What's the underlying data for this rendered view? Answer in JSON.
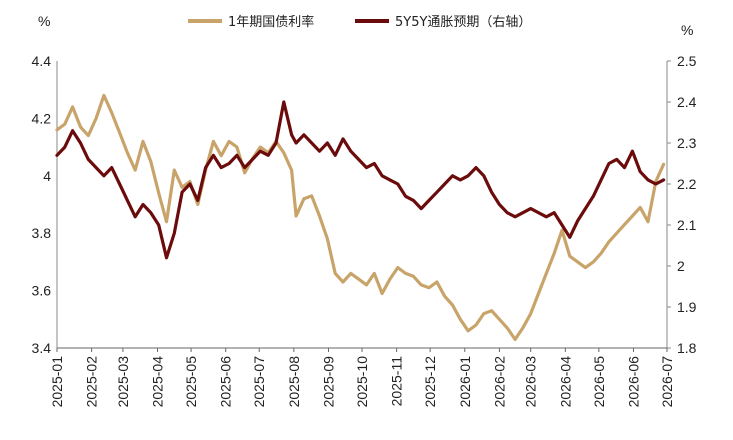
{
  "chart_data": {
    "type": "line",
    "title": "",
    "left_unit": "%",
    "right_unit": "%",
    "x_ticks": [
      "2025-01",
      "2025-02",
      "2025-03",
      "2025-04",
      "2025-05",
      "2025-06",
      "2025-07",
      "2025-08",
      "2025-09",
      "2025-10",
      "2025-11",
      "2025-12",
      "2026-01",
      "2026-02",
      "2026-03",
      "2026-04",
      "2026-05",
      "2026-06",
      "2026-07"
    ],
    "y_left": {
      "range": [
        3.4,
        4.4
      ],
      "ticks": [
        "3.4",
        "3.6",
        "3.8",
        "4",
        "4.2",
        "4.4"
      ]
    },
    "y_right": {
      "range": [
        1.8,
        2.5
      ],
      "ticks": [
        "1.8",
        "1.9",
        "2",
        "2.1",
        "2.2",
        "2.3",
        "2.4",
        "2.5"
      ]
    },
    "legend_position": "top-center",
    "grid": false,
    "series": [
      {
        "name": "1年期国债利率",
        "axis": "left",
        "color": "#c9a46a",
        "points": [
          [
            "2025-01-01",
            4.16
          ],
          [
            "2025-01-08",
            4.18
          ],
          [
            "2025-01-15",
            4.24
          ],
          [
            "2025-01-22",
            4.17
          ],
          [
            "2025-01-29",
            4.14
          ],
          [
            "2025-02-05",
            4.2
          ],
          [
            "2025-02-12",
            4.28
          ],
          [
            "2025-02-19",
            4.22
          ],
          [
            "2025-02-26",
            4.15
          ],
          [
            "2025-03-05",
            4.08
          ],
          [
            "2025-03-12",
            4.02
          ],
          [
            "2025-03-19",
            4.12
          ],
          [
            "2025-03-26",
            4.05
          ],
          [
            "2025-04-02",
            3.94
          ],
          [
            "2025-04-09",
            3.84
          ],
          [
            "2025-04-16",
            4.02
          ],
          [
            "2025-04-23",
            3.96
          ],
          [
            "2025-04-30",
            3.98
          ],
          [
            "2025-05-07",
            3.9
          ],
          [
            "2025-05-14",
            4.02
          ],
          [
            "2025-05-21",
            4.12
          ],
          [
            "2025-05-28",
            4.07
          ],
          [
            "2025-06-04",
            4.12
          ],
          [
            "2025-06-11",
            4.1
          ],
          [
            "2025-06-18",
            4.01
          ],
          [
            "2025-06-25",
            4.06
          ],
          [
            "2025-07-02",
            4.1
          ],
          [
            "2025-07-09",
            4.08
          ],
          [
            "2025-07-16",
            4.12
          ],
          [
            "2025-07-23",
            4.08
          ],
          [
            "2025-07-30",
            4.02
          ],
          [
            "2025-08-03",
            3.86
          ],
          [
            "2025-08-10",
            3.92
          ],
          [
            "2025-08-17",
            3.93
          ],
          [
            "2025-08-24",
            3.86
          ],
          [
            "2025-08-31",
            3.78
          ],
          [
            "2025-09-07",
            3.66
          ],
          [
            "2025-09-14",
            3.63
          ],
          [
            "2025-09-21",
            3.66
          ],
          [
            "2025-09-28",
            3.64
          ],
          [
            "2025-10-05",
            3.62
          ],
          [
            "2025-10-12",
            3.66
          ],
          [
            "2025-10-19",
            3.59
          ],
          [
            "2025-10-26",
            3.64
          ],
          [
            "2025-11-02",
            3.68
          ],
          [
            "2025-11-09",
            3.66
          ],
          [
            "2025-11-16",
            3.65
          ],
          [
            "2025-11-23",
            3.62
          ],
          [
            "2025-11-30",
            3.61
          ],
          [
            "2025-12-07",
            3.63
          ],
          [
            "2025-12-14",
            3.58
          ],
          [
            "2025-12-21",
            3.55
          ],
          [
            "2025-12-28",
            3.5
          ],
          [
            "2026-01-04",
            3.46
          ],
          [
            "2026-01-11",
            3.48
          ],
          [
            "2026-01-18",
            3.52
          ],
          [
            "2026-01-25",
            3.53
          ],
          [
            "2026-02-01",
            3.5
          ],
          [
            "2026-02-08",
            3.47
          ],
          [
            "2026-02-15",
            3.43
          ],
          [
            "2026-02-22",
            3.47
          ],
          [
            "2026-03-01",
            3.52
          ],
          [
            "2026-03-08",
            3.59
          ],
          [
            "2026-03-15",
            3.66
          ],
          [
            "2026-03-22",
            3.73
          ],
          [
            "2026-03-29",
            3.81
          ],
          [
            "2026-04-05",
            3.72
          ],
          [
            "2026-04-12",
            3.7
          ],
          [
            "2026-04-19",
            3.68
          ],
          [
            "2026-04-26",
            3.7
          ],
          [
            "2026-05-03",
            3.73
          ],
          [
            "2026-05-10",
            3.77
          ],
          [
            "2026-05-17",
            3.8
          ],
          [
            "2026-05-24",
            3.83
          ],
          [
            "2026-05-31",
            3.86
          ],
          [
            "2026-06-07",
            3.89
          ],
          [
            "2026-06-14",
            3.84
          ],
          [
            "2026-06-21",
            3.98
          ],
          [
            "2026-06-28",
            4.04
          ]
        ]
      },
      {
        "name": "5Y5Y通胀预期（右轴）",
        "axis": "right",
        "color": "#6b0b0b",
        "points": [
          [
            "2025-01-01",
            2.27
          ],
          [
            "2025-01-08",
            2.29
          ],
          [
            "2025-01-15",
            2.33
          ],
          [
            "2025-01-22",
            2.3
          ],
          [
            "2025-01-29",
            2.26
          ],
          [
            "2025-02-05",
            2.24
          ],
          [
            "2025-02-12",
            2.22
          ],
          [
            "2025-02-19",
            2.24
          ],
          [
            "2025-02-26",
            2.2
          ],
          [
            "2025-03-05",
            2.16
          ],
          [
            "2025-03-12",
            2.12
          ],
          [
            "2025-03-19",
            2.15
          ],
          [
            "2025-03-26",
            2.13
          ],
          [
            "2025-04-02",
            2.1
          ],
          [
            "2025-04-09",
            2.02
          ],
          [
            "2025-04-16",
            2.08
          ],
          [
            "2025-04-23",
            2.18
          ],
          [
            "2025-04-30",
            2.2
          ],
          [
            "2025-05-07",
            2.16
          ],
          [
            "2025-05-14",
            2.24
          ],
          [
            "2025-05-21",
            2.27
          ],
          [
            "2025-05-28",
            2.24
          ],
          [
            "2025-06-04",
            2.25
          ],
          [
            "2025-06-11",
            2.27
          ],
          [
            "2025-06-18",
            2.24
          ],
          [
            "2025-06-25",
            2.26
          ],
          [
            "2025-07-02",
            2.28
          ],
          [
            "2025-07-09",
            2.27
          ],
          [
            "2025-07-16",
            2.3
          ],
          [
            "2025-07-23",
            2.4
          ],
          [
            "2025-07-30",
            2.32
          ],
          [
            "2025-08-03",
            2.3
          ],
          [
            "2025-08-10",
            2.32
          ],
          [
            "2025-08-17",
            2.3
          ],
          [
            "2025-08-24",
            2.28
          ],
          [
            "2025-08-31",
            2.3
          ],
          [
            "2025-09-07",
            2.27
          ],
          [
            "2025-09-14",
            2.31
          ],
          [
            "2025-09-21",
            2.28
          ],
          [
            "2025-09-28",
            2.26
          ],
          [
            "2025-10-05",
            2.24
          ],
          [
            "2025-10-12",
            2.25
          ],
          [
            "2025-10-19",
            2.22
          ],
          [
            "2025-10-26",
            2.21
          ],
          [
            "2025-11-02",
            2.2
          ],
          [
            "2025-11-09",
            2.17
          ],
          [
            "2025-11-16",
            2.16
          ],
          [
            "2025-11-23",
            2.14
          ],
          [
            "2025-11-30",
            2.16
          ],
          [
            "2025-12-07",
            2.18
          ],
          [
            "2025-12-14",
            2.2
          ],
          [
            "2025-12-21",
            2.22
          ],
          [
            "2025-12-28",
            2.21
          ],
          [
            "2026-01-04",
            2.22
          ],
          [
            "2026-01-11",
            2.24
          ],
          [
            "2026-01-18",
            2.22
          ],
          [
            "2026-01-25",
            2.18
          ],
          [
            "2026-02-01",
            2.15
          ],
          [
            "2026-02-08",
            2.13
          ],
          [
            "2026-02-15",
            2.12
          ],
          [
            "2026-02-22",
            2.13
          ],
          [
            "2026-03-01",
            2.14
          ],
          [
            "2026-03-08",
            2.13
          ],
          [
            "2026-03-15",
            2.12
          ],
          [
            "2026-03-22",
            2.13
          ],
          [
            "2026-03-29",
            2.1
          ],
          [
            "2026-04-05",
            2.07
          ],
          [
            "2026-04-12",
            2.11
          ],
          [
            "2026-04-19",
            2.14
          ],
          [
            "2026-04-26",
            2.17
          ],
          [
            "2026-05-03",
            2.21
          ],
          [
            "2026-05-10",
            2.25
          ],
          [
            "2026-05-17",
            2.26
          ],
          [
            "2026-05-24",
            2.24
          ],
          [
            "2026-05-31",
            2.28
          ],
          [
            "2026-06-07",
            2.23
          ],
          [
            "2026-06-14",
            2.21
          ],
          [
            "2026-06-21",
            2.2
          ],
          [
            "2026-06-28",
            2.21
          ]
        ]
      }
    ]
  }
}
